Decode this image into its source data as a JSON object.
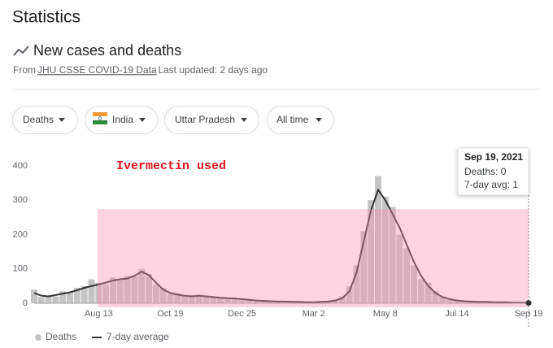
{
  "header": {
    "title": "Statistics",
    "subtitle": "New cases and deaths",
    "source_prefix": "From",
    "source_link": "JHU CSSE COVID-19 Data",
    "updated": "· Last updated: 2 days ago"
  },
  "filters": [
    "Deaths",
    "India",
    "Uttar Pradesh",
    "All time"
  ],
  "chart_data": {
    "type": "bar",
    "annotation": "Ivermectin used",
    "tooltip": {
      "date": "Sep 19, 2021",
      "lines": [
        "Deaths: 0",
        "7-day avg: 1"
      ]
    },
    "categories": [
      null,
      null,
      null,
      null,
      null,
      null,
      null,
      null,
      null,
      "Aug 13",
      null,
      null,
      null,
      null,
      null,
      null,
      null,
      null,
      null,
      "Oct 19",
      null,
      null,
      null,
      null,
      null,
      null,
      null,
      null,
      null,
      "Dec 25",
      null,
      null,
      null,
      null,
      null,
      null,
      null,
      null,
      null,
      "Mar 2",
      null,
      null,
      null,
      null,
      null,
      null,
      null,
      null,
      null,
      "May 8",
      null,
      null,
      null,
      null,
      null,
      null,
      null,
      null,
      null,
      "Jul 14",
      null,
      null,
      null,
      null,
      null,
      null,
      null,
      null,
      null,
      "Sep 19"
    ],
    "series": [
      {
        "name": "Deaths",
        "type": "bar",
        "color": "#c4c4c4",
        "values": [
          40,
          18,
          22,
          20,
          35,
          30,
          45,
          50,
          70,
          60,
          55,
          75,
          68,
          80,
          78,
          100,
          85,
          55,
          45,
          28,
          30,
          20,
          24,
          25,
          18,
          20,
          15,
          16,
          12,
          14,
          9,
          8,
          6,
          7,
          4,
          6,
          3,
          5,
          2,
          3,
          5,
          6,
          10,
          20,
          50,
          110,
          210,
          300,
          370,
          310,
          280,
          200,
          160,
          110,
          70,
          60,
          35,
          20,
          10,
          9,
          5,
          6,
          3,
          4,
          2,
          4,
          3,
          2,
          1,
          0
        ]
      },
      {
        "name": "7-day average",
        "type": "line",
        "color": "#333333",
        "values": [
          30,
          22,
          20,
          24,
          28,
          32,
          38,
          45,
          50,
          55,
          60,
          66,
          70,
          72,
          80,
          92,
          82,
          60,
          40,
          30,
          25,
          22,
          20,
          22,
          20,
          18,
          16,
          15,
          14,
          12,
          10,
          8,
          7,
          6,
          5,
          5,
          4,
          4,
          3,
          3,
          4,
          5,
          8,
          15,
          35,
          90,
          180,
          270,
          330,
          300,
          260,
          220,
          170,
          120,
          80,
          50,
          30,
          18,
          12,
          8,
          6,
          5,
          4,
          4,
          3,
          3,
          3,
          2,
          2,
          1
        ]
      }
    ],
    "ylim": [
      0,
      440
    ],
    "yticks": [
      0,
      100,
      200,
      300,
      400
    ],
    "grid": false
  }
}
